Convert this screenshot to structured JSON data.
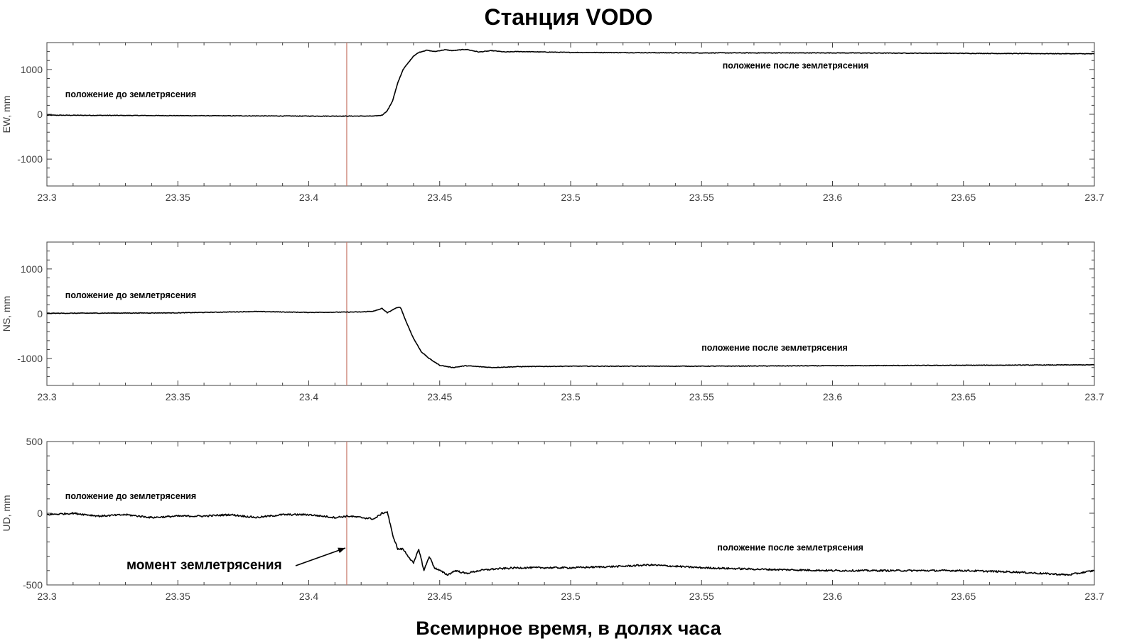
{
  "title": "Станция VODO",
  "x_label": "Всемирное время, в долях часа",
  "event_arrow_label": "момент землетрясения",
  "colors": {
    "trace": "#000000",
    "event_line": "#c87a6a",
    "axes": "#404040",
    "tick_text": "#404040"
  },
  "chart_data": [
    {
      "type": "line",
      "component": "EW",
      "ylabel": "EW, mm",
      "xlim": [
        23.3,
        23.7
      ],
      "ylim": [
        -1600,
        1600
      ],
      "x_ticks": [
        23.3,
        23.35,
        23.4,
        23.45,
        23.5,
        23.55,
        23.6,
        23.65,
        23.7
      ],
      "x_tick_labels": [
        "23.3",
        "23.35",
        "23.4",
        "23.45",
        "23.5",
        "23.55",
        "23.6",
        "23.65",
        "23.7"
      ],
      "y_ticks": [
        -1000,
        0,
        1000
      ],
      "y_tick_labels": [
        "-1000",
        "0",
        "1000"
      ],
      "event_time": 23.4145,
      "annotations": [
        {
          "text": "положение до землетрясения",
          "x": 23.307,
          "y": 380
        },
        {
          "text": "положение после землетрясения",
          "x": 23.558,
          "y": 1020
        }
      ],
      "series": [
        {
          "x": [
            23.3,
            23.35,
            23.4,
            23.425,
            23.428,
            23.43,
            23.432,
            23.434,
            23.436,
            23.438,
            23.44,
            23.442,
            23.445,
            23.448,
            23.452,
            23.455,
            23.46,
            23.465,
            23.47,
            23.475,
            23.48,
            23.5,
            23.55,
            23.6,
            23.65,
            23.7
          ],
          "y": [
            -20,
            -30,
            -40,
            -40,
            -20,
            80,
            300,
            700,
            1000,
            1150,
            1300,
            1380,
            1430,
            1400,
            1440,
            1420,
            1450,
            1390,
            1420,
            1390,
            1400,
            1380,
            1370,
            1370,
            1360,
            1350
          ]
        }
      ]
    },
    {
      "type": "line",
      "component": "NS",
      "ylabel": "NS, mm",
      "xlim": [
        23.3,
        23.7
      ],
      "ylim": [
        -1600,
        1600
      ],
      "x_ticks": [
        23.3,
        23.35,
        23.4,
        23.45,
        23.5,
        23.55,
        23.6,
        23.65,
        23.7
      ],
      "x_tick_labels": [
        "23.3",
        "23.35",
        "23.4",
        "23.45",
        "23.5",
        "23.55",
        "23.6",
        "23.65",
        "23.7"
      ],
      "y_ticks": [
        -1000,
        0,
        1000
      ],
      "y_tick_labels": [
        "-1000",
        "0",
        "1000"
      ],
      "event_time": 23.4145,
      "annotations": [
        {
          "text": "положение до землетрясения",
          "x": 23.307,
          "y": 350
        },
        {
          "text": "положение после землетрясения",
          "x": 23.55,
          "y": -820
        }
      ],
      "series": [
        {
          "x": [
            23.3,
            23.35,
            23.38,
            23.4,
            23.42,
            23.425,
            23.428,
            23.43,
            23.433,
            23.435,
            23.437,
            23.44,
            23.443,
            23.446,
            23.45,
            23.455,
            23.46,
            23.47,
            23.48,
            23.5,
            23.55,
            23.6,
            23.65,
            23.7
          ],
          "y": [
            10,
            20,
            50,
            30,
            40,
            60,
            120,
            20,
            120,
            150,
            -150,
            -550,
            -850,
            -1000,
            -1150,
            -1200,
            -1160,
            -1200,
            -1180,
            -1170,
            -1170,
            -1160,
            -1150,
            -1140
          ]
        }
      ]
    },
    {
      "type": "line",
      "component": "UD",
      "ylabel": "UD, mm",
      "xlim": [
        23.3,
        23.7
      ],
      "ylim": [
        -500,
        500
      ],
      "x_ticks": [
        23.3,
        23.35,
        23.4,
        23.45,
        23.5,
        23.55,
        23.6,
        23.65,
        23.7
      ],
      "x_tick_labels": [
        "23.3",
        "23.35",
        "23.4",
        "23.45",
        "23.5",
        "23.55",
        "23.6",
        "23.65",
        "23.7"
      ],
      "y_ticks": [
        -500,
        0,
        500
      ],
      "y_tick_labels": [
        "-500",
        "0",
        "500"
      ],
      "event_time": 23.4145,
      "annotations": [
        {
          "text": "положение до землетрясения",
          "x": 23.307,
          "y": 100
        },
        {
          "text": "положение после землетрясения",
          "x": 23.556,
          "y": -260
        }
      ],
      "series": [
        {
          "x": [
            23.3,
            23.31,
            23.32,
            23.33,
            23.34,
            23.35,
            23.36,
            23.37,
            23.38,
            23.39,
            23.4,
            23.41,
            23.415,
            23.42,
            23.425,
            23.428,
            23.43,
            23.432,
            23.434,
            23.436,
            23.438,
            23.44,
            23.442,
            23.444,
            23.446,
            23.448,
            23.45,
            23.453,
            23.456,
            23.46,
            23.465,
            23.47,
            23.48,
            23.49,
            23.5,
            23.52,
            23.53,
            23.55,
            23.57,
            23.6,
            23.62,
            23.64,
            23.65,
            23.67,
            23.69,
            23.7
          ],
          "y": [
            -10,
            0,
            -20,
            -10,
            -30,
            -20,
            -20,
            -10,
            -30,
            -10,
            -10,
            -30,
            -20,
            -30,
            -40,
            0,
            10,
            -150,
            -250,
            -250,
            -300,
            -350,
            -250,
            -400,
            -300,
            -380,
            -400,
            -430,
            -400,
            -420,
            -400,
            -390,
            -380,
            -380,
            -380,
            -370,
            -360,
            -380,
            -390,
            -400,
            -400,
            -400,
            -400,
            -410,
            -430,
            -400
          ]
        }
      ]
    }
  ]
}
